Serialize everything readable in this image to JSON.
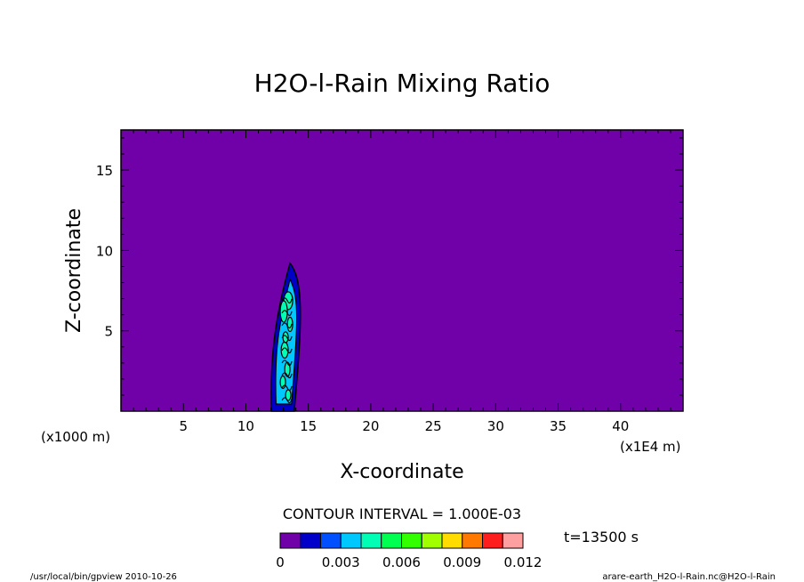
{
  "chart_data": {
    "type": "contour",
    "title": "H2O-l-Rain Mixing Ratio",
    "xlabel": "X-coordinate",
    "ylabel": "Z-coordinate",
    "x_unit_left": "(x1000 m)",
    "x_unit_right": "(x1E4 m)",
    "xlim": [
      0,
      45
    ],
    "ylim": [
      0,
      17.5
    ],
    "x_ticks": [
      "5",
      "10",
      "15",
      "20",
      "25",
      "30",
      "35",
      "40"
    ],
    "x_tick_values": [
      5,
      10,
      15,
      20,
      25,
      30,
      35,
      40
    ],
    "y_ticks": [
      "5",
      "10",
      "15"
    ],
    "y_tick_values": [
      5,
      10,
      15
    ],
    "background_color": "#7000a8",
    "contour_interval_text": "CONTOUR INTERVAL = 1.000E-03",
    "time_text": "t=13500 s",
    "colorbar": {
      "labels": [
        "0",
        "0.003",
        "0.006",
        "0.009",
        "0.012"
      ],
      "label_values": [
        0,
        0.003,
        0.006,
        0.009,
        0.012
      ],
      "colors": [
        "#7000a8",
        "#0000c8",
        "#0050ff",
        "#00c8ff",
        "#00ffb4",
        "#00ff50",
        "#32ff00",
        "#a0ff00",
        "#ffdc00",
        "#ff7800",
        "#ff1e1e",
        "#ffa0a0"
      ]
    },
    "cloud_region": {
      "x_range": [
        12.2,
        14.3
      ],
      "z_range": [
        0,
        9.2
      ],
      "colors": [
        "#0000c8",
        "#00c8ff",
        "#00ffb4"
      ]
    }
  },
  "footer": {
    "left": "/usr/local/bin/gpview  2010-10-26",
    "right": "arare-earth_H2O-l-Rain.nc@H2O-l-Rain"
  }
}
